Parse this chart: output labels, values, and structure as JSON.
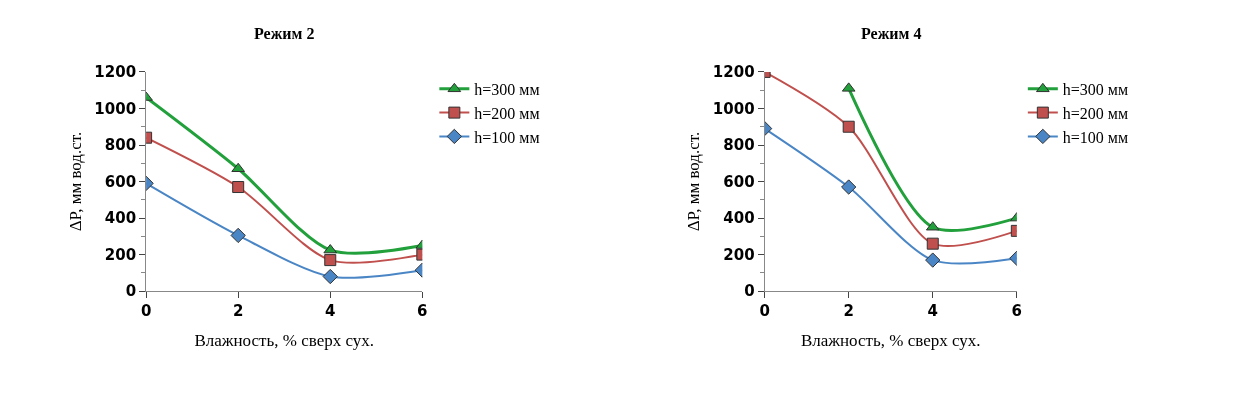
{
  "chart_data": [
    {
      "type": "line",
      "title": "Режим 2",
      "xlabel": "Влажность, % сверх сух.",
      "ylabel": "ΔP, мм вод.ст.",
      "x": [
        0,
        2,
        4,
        6
      ],
      "xlim": [
        0,
        6
      ],
      "xticks": [
        0,
        2,
        4,
        6
      ],
      "ylim": [
        0,
        1200
      ],
      "yticks": [
        0,
        200,
        400,
        600,
        800,
        1000,
        1200
      ],
      "legend": "right",
      "series": [
        {
          "name": "h=300 мм",
          "color": "#22a03c",
          "marker": "triangle",
          "values": [
            1060,
            670,
            225,
            250
          ]
        },
        {
          "name": "h=200 мм",
          "color": "#c0504d",
          "marker": "square",
          "values": [
            840,
            570,
            170,
            200
          ]
        },
        {
          "name": "h=100 мм",
          "color": "#4a86c5",
          "marker": "diamond",
          "values": [
            590,
            305,
            80,
            115
          ]
        }
      ]
    },
    {
      "type": "line",
      "title": "Режим 4",
      "xlabel": "Влажность, % сверх сух.",
      "ylabel": "ΔP, мм вод.ст.",
      "x": [
        0,
        2,
        4,
        6
      ],
      "xlim": [
        0,
        6
      ],
      "xticks": [
        0,
        2,
        4,
        6
      ],
      "ylim": [
        0,
        1200
      ],
      "yticks": [
        0,
        200,
        400,
        600,
        800,
        1000,
        1200
      ],
      "legend": "right",
      "series": [
        {
          "name": "h=300 мм",
          "color": "#22a03c",
          "marker": "triangle",
          "values": [
            null,
            1110,
            350,
            400
          ]
        },
        {
          "name": "h=200 мм",
          "color": "#c0504d",
          "marker": "square",
          "values": [
            1200,
            900,
            260,
            330
          ]
        },
        {
          "name": "h=100 мм",
          "color": "#4a86c5",
          "marker": "diamond",
          "values": [
            890,
            570,
            170,
            180
          ]
        }
      ]
    }
  ]
}
